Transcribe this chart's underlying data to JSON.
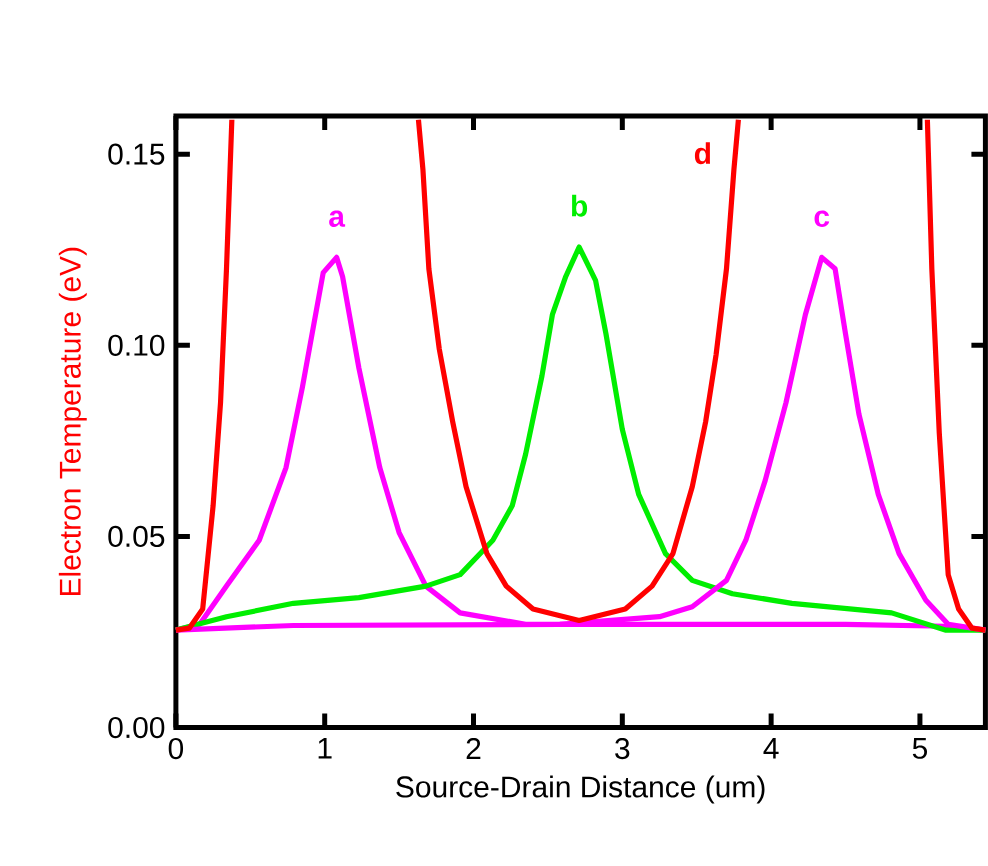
{
  "chart_data": {
    "type": "line",
    "xlabel": "Source-Drain Distance  (um)",
    "ylabel": "Electron  Temperature  (eV)",
    "xlim": [
      0,
      5.44
    ],
    "ylim": [
      0,
      0.16
    ],
    "xticks": [
      0,
      1,
      2,
      3,
      4,
      5
    ],
    "yticks": [
      {
        "value": 0,
        "label": "0.00"
      },
      {
        "value": 0.05,
        "label": "0.05"
      },
      {
        "value": 0.1,
        "label": "0.10"
      },
      {
        "value": 0.15,
        "label": "0.15"
      }
    ],
    "grid": false,
    "legend": false,
    "marker": "none",
    "line_style": "solid",
    "series": [
      {
        "name": "a",
        "color": "#ff00ff",
        "x": [
          0,
          0.16,
          0.34,
          0.56,
          0.74,
          0.85,
          0.99,
          1.08,
          1.12,
          1.23,
          1.37,
          1.5,
          1.68,
          1.91,
          2.35,
          3.02,
          4.5,
          5.17,
          5.44
        ],
        "values": [
          0.0255,
          0.027,
          0.037,
          0.049,
          0.068,
          0.089,
          0.119,
          0.123,
          0.118,
          0.094,
          0.068,
          0.051,
          0.037,
          0.03,
          0.027,
          0.027,
          0.027,
          0.0265,
          0.0255
        ]
      },
      {
        "name": "b",
        "color": "#00ee00",
        "x": [
          0,
          0.34,
          0.79,
          1.23,
          1.68,
          1.91,
          2.13,
          2.26,
          2.35,
          2.46,
          2.53,
          2.62,
          2.71,
          2.82,
          2.89,
          3.0,
          3.11,
          3.29,
          3.47,
          3.74,
          4.14,
          4.81,
          5.17,
          5.44
        ],
        "values": [
          0.0255,
          0.029,
          0.0325,
          0.034,
          0.037,
          0.04,
          0.049,
          0.058,
          0.0715,
          0.092,
          0.108,
          0.118,
          0.1257,
          0.117,
          0.103,
          0.078,
          0.061,
          0.0455,
          0.0385,
          0.035,
          0.0325,
          0.03,
          0.0255,
          0.0255
        ]
      },
      {
        "name": "c",
        "color": "#ff00ff",
        "x": [
          0,
          0.79,
          2.58,
          3.25,
          3.47,
          3.7,
          3.83,
          3.96,
          4.1,
          4.23,
          4.34,
          4.43,
          4.5,
          4.59,
          4.72,
          4.86,
          5.04,
          5.19,
          5.44
        ],
        "values": [
          0.0255,
          0.0267,
          0.027,
          0.029,
          0.0316,
          0.0385,
          0.049,
          0.0646,
          0.085,
          0.108,
          0.123,
          0.12,
          0.103,
          0.082,
          0.061,
          0.0455,
          0.0333,
          0.027,
          0.0255
        ]
      },
      {
        "name": "d",
        "color": "#ff0000",
        "x": [
          0,
          0.09,
          0.18,
          0.25,
          0.3,
          0.34,
          0.376,
          1.0,
          1.63,
          1.66,
          1.7,
          1.77,
          1.86,
          1.95,
          2.09,
          2.22,
          2.4,
          2.71,
          3.02,
          3.2,
          3.34,
          3.47,
          3.56,
          3.63,
          3.7,
          3.75,
          3.78,
          4.4,
          5.05,
          5.08,
          5.13,
          5.19,
          5.26,
          5.35,
          5.44
        ],
        "values": [
          0.0255,
          0.026,
          0.031,
          0.058,
          0.085,
          0.12,
          0.159,
          null,
          0.159,
          0.146,
          0.12,
          0.099,
          0.08,
          0.063,
          0.0455,
          0.037,
          0.031,
          0.028,
          0.031,
          0.037,
          0.0455,
          0.063,
          0.08,
          0.0975,
          0.12,
          0.146,
          0.159,
          null,
          0.159,
          0.12,
          0.077,
          0.04,
          0.031,
          0.026,
          0.0255
        ]
      }
    ]
  }
}
